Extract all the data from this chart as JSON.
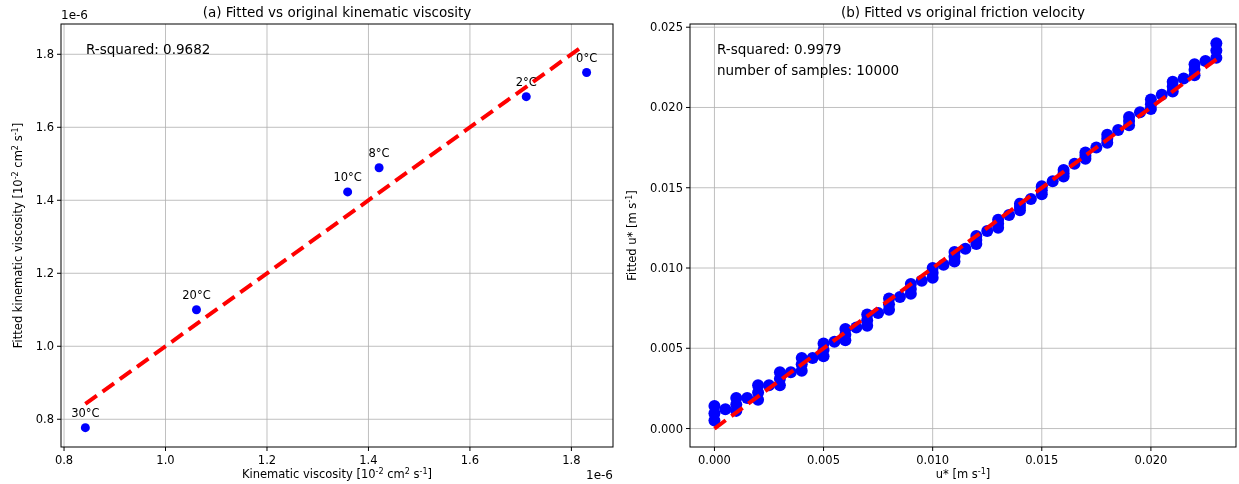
{
  "chart_data": [
    {
      "type": "scatter",
      "title": "(a) Fitted vs original kinematic viscosity",
      "xlabel": "Kinematic viscosity [10$^{-2}$ cm$^{2}$ s$^{-1}$]",
      "ylabel": "Fitted kinematic viscosity [10$^{-2}$ cm$^{2}$ s$^{-1}$]",
      "xlim": [
        0.794,
        1.882
      ],
      "ylim": [
        0.724,
        1.883
      ],
      "xticks": [
        0.8,
        {
          "value": 1,
          "label": "1.0"
        },
        1.2,
        1.4,
        1.6,
        1.8
      ],
      "yticks": [
        0.8,
        {
          "value": 1,
          "label": "1.0"
        },
        1.2,
        1.4,
        1.6,
        1.8
      ],
      "grid": true,
      "series": [
        {
          "color": "#0000ff",
          "marker": "circle",
          "x": [
            0.842,
            1.061,
            1.359,
            1.421,
            1.711,
            1.83
          ],
          "values": [
            0.777,
            1.1,
            1.423,
            1.489,
            1.684,
            1.75
          ]
        },
        {
          "type": "line",
          "color": "#ff0000",
          "line_style": "dashed",
          "marker": "none",
          "x": [
            0.842,
            1.815
          ],
          "values": [
            0.842,
            1.815
          ]
        }
      ],
      "annotations": [
        "1e-6",
        "1e-6",
        "R-squared: 0.9682",
        {
          "text": "30°C",
          "x": 0.842,
          "y": 0.777
        },
        {
          "text": "20°C",
          "x": 1.061,
          "y": 1.1
        },
        {
          "text": "10°C",
          "x": 1.359,
          "y": 1.423
        },
        {
          "text": "8°C",
          "x": 1.421,
          "y": 1.489
        },
        {
          "text": "2°C",
          "x": 1.711,
          "y": 1.684
        },
        {
          "text": "0°C",
          "x": 1.83,
          "y": 1.75
        }
      ]
    },
    {
      "type": "scatter",
      "title": "(b) Fitted vs original friction velocity",
      "xlabel": "u* [m s$^{-1}$]",
      "ylabel": "Fitted u* [m s$^{-1}$]",
      "xlim": [
        -0.00112,
        0.0239
      ],
      "ylim": [
        -0.00115,
        0.0252
      ],
      "xticks": [
        {
          "value": 0,
          "label": "0.000"
        },
        {
          "value": 0.005,
          "label": "0.005"
        },
        {
          "value": 0.01,
          "label": "0.010"
        },
        {
          "value": 0.015,
          "label": "0.015"
        },
        {
          "value": 0.02,
          "label": "0.020"
        }
      ],
      "yticks": [
        {
          "value": 0,
          "label": "0.000"
        },
        {
          "value": 0.005,
          "label": "0.005"
        },
        {
          "value": 0.01,
          "label": "0.010"
        },
        {
          "value": 0.015,
          "label": "0.015"
        },
        {
          "value": 0.02,
          "label": "0.020"
        },
        {
          "value": 0.025,
          "label": "0.025"
        }
      ],
      "grid": true,
      "series": [
        {
          "color": "#0000ff",
          "marker": "circle",
          "x": [
            0,
            0.001,
            0.002,
            0.003,
            0.004,
            0.005,
            0.006,
            0.007,
            0.008,
            0.009,
            0.01,
            0.011,
            0.012,
            0.013,
            0.014,
            0.015,
            0.016,
            0.017,
            0.018,
            0.019,
            0.02,
            0.021,
            0.022,
            0.023,
            0,
            0.001,
            0.002,
            0.003,
            0.004,
            0.005,
            0.006,
            0.007,
            0.008,
            0.009,
            0.01,
            0.011,
            0.012,
            0.013,
            0.014,
            0.015,
            0.016,
            0.017,
            0.018,
            0.019,
            0.02,
            0.021,
            0.022,
            0.023,
            0,
            0.0005,
            0.001,
            0.0015,
            0.002,
            0.0025,
            0.003,
            0.0035,
            0.004,
            0.0045,
            0.005,
            0.0055,
            0.006,
            0.0065,
            0.007,
            0.0075,
            0.008,
            0.0085,
            0.009,
            0.0095,
            0.01,
            0.0105,
            0.011,
            0.0115,
            0.012,
            0.0125,
            0.013,
            0.0135,
            0.014,
            0.0145,
            0.015,
            0.0155,
            0.016,
            0.0165,
            0.017,
            0.0175,
            0.018,
            0.0185,
            0.019,
            0.0195,
            0.02,
            0.0205,
            0.021,
            0.0215,
            0.022,
            0.0225,
            0.023
          ],
          "values": [
            0.0014,
            0.0019,
            0.0027,
            0.0035,
            0.0044,
            0.0053,
            0.0062,
            0.0071,
            0.0081,
            0.009,
            0.01,
            0.011,
            0.012,
            0.013,
            0.014,
            0.0151,
            0.0161,
            0.0172,
            0.0183,
            0.0194,
            0.0205,
            0.0216,
            0.0227,
            0.024,
            0.0005,
            0.0011,
            0.0018,
            0.0027,
            0.0036,
            0.0045,
            0.0055,
            0.0064,
            0.0074,
            0.0084,
            0.0094,
            0.0104,
            0.0115,
            0.0125,
            0.0136,
            0.0146,
            0.0157,
            0.0168,
            0.0178,
            0.0189,
            0.0199,
            0.021,
            0.022,
            0.0231,
            0.00095,
            0.0012,
            0.0015,
            0.0019,
            0.00225,
            0.0027,
            0.0031,
            0.0035,
            0.004,
            0.0044,
            0.0049,
            0.0054,
            0.00585,
            0.0063,
            0.00675,
            0.0072,
            0.00775,
            0.0082,
            0.0087,
            0.0092,
            0.0097,
            0.0102,
            0.0107,
            0.0112,
            0.01175,
            0.0123,
            0.01275,
            0.0133,
            0.0138,
            0.0143,
            0.01485,
            0.0154,
            0.0159,
            0.0165,
            0.017,
            0.0175,
            0.01805,
            0.0186,
            0.01915,
            0.0197,
            0.0202,
            0.0208,
            0.0213,
            0.0218,
            0.02235,
            0.0229,
            0.02355
          ]
        },
        {
          "type": "line",
          "color": "#ff0000",
          "line_style": "dashed",
          "marker": "none",
          "x": [
            0,
            0.023
          ],
          "values": [
            0,
            0.023
          ]
        }
      ],
      "annotations": [
        "R-squared: 0.9979",
        "number of samples: 10000"
      ]
    }
  ]
}
